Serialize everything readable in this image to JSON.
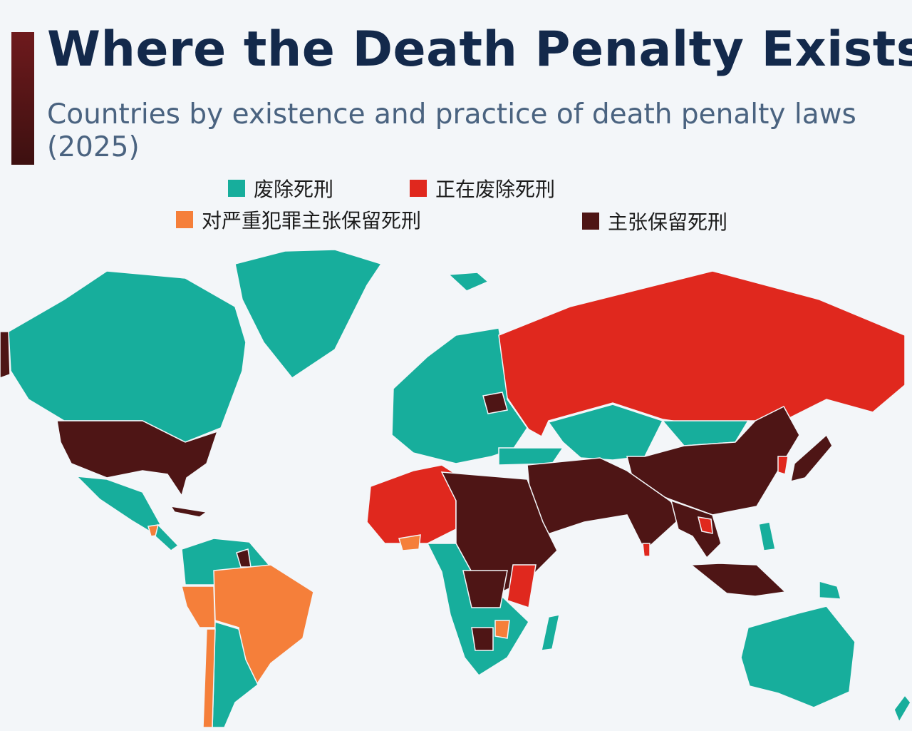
{
  "header": {
    "title": "Where the Death Penalty Exists",
    "subtitle": "Countries by existence and practice of death penalty laws (2025)"
  },
  "legend": [
    {
      "label": "废除死刑",
      "color": "#17ae9c"
    },
    {
      "label": "正在废除死刑",
      "color": "#e0281e"
    },
    {
      "label": "对严重犯罪主张保留死刑",
      "color": "#f57f3a"
    },
    {
      "label": "主张保留死刑",
      "color": "#4e1515"
    }
  ]
}
